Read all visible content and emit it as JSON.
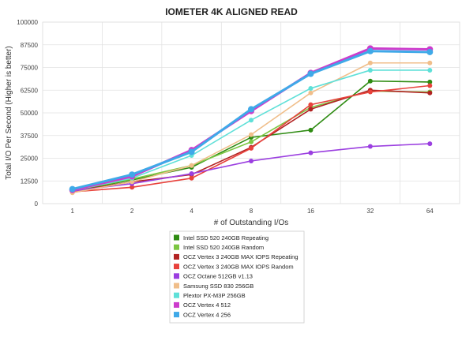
{
  "chart_data": {
    "type": "line",
    "title": "IOMETER 4K ALIGNED READ",
    "xlabel": "# of Outstanding I/Os",
    "ylabel": "Total I/O Per Second (Higher is better)",
    "categories": [
      "1",
      "2",
      "4",
      "8",
      "16",
      "32",
      "64"
    ],
    "yticks": [
      "0",
      "12500",
      "25000",
      "37500",
      "50000",
      "62500",
      "75000",
      "87500",
      "100000"
    ],
    "ylim": [
      0,
      100000
    ],
    "grid": true,
    "legend_position": "bottom",
    "series": [
      {
        "name": "Intel SSD 520 240GB Repeating",
        "color": "#2e8b12",
        "values": [
          7000,
          13000,
          20000,
          36500,
          40500,
          67500,
          67000
        ]
      },
      {
        "name": "Intel SSD 520 240GB Random",
        "color": "#7cc642",
        "values": [
          7200,
          13500,
          21000,
          34000,
          53000,
          62000,
          61500
        ]
      },
      {
        "name": "OCZ Vertex 3 240GB MAX IOPS Repeating",
        "color": "#b22222",
        "values": [
          6800,
          12000,
          16000,
          31000,
          52000,
          62500,
          61000
        ]
      },
      {
        "name": "OCZ Vertex 3 240GB MAX IOPS Random",
        "color": "#e8423c",
        "values": [
          6500,
          9000,
          14000,
          30500,
          54500,
          61500,
          65000
        ]
      },
      {
        "name": "OCZ Octane 512GB v1.13",
        "color": "#9b3fe0",
        "values": [
          7000,
          11000,
          16500,
          23500,
          28000,
          31500,
          33000
        ]
      },
      {
        "name": "Samsung SSD 830 256GB",
        "color": "#f0be8a",
        "values": [
          6000,
          12000,
          21000,
          38000,
          61000,
          77500,
          77500
        ]
      },
      {
        "name": "Plextor PX-M3P 256GB",
        "color": "#5fe0d8",
        "values": [
          7200,
          14000,
          26500,
          46000,
          63500,
          73500,
          73500
        ]
      },
      {
        "name": "OCZ Vertex 4 512",
        "color": "#cc3ccc",
        "values": [
          7500,
          15000,
          29500,
          51000,
          72000,
          85500,
          85000
        ]
      },
      {
        "name": "OCZ Vertex 4 256",
        "color": "#3fa9e8",
        "values": [
          8000,
          16000,
          28500,
          52000,
          71500,
          84000,
          83500
        ]
      }
    ]
  }
}
